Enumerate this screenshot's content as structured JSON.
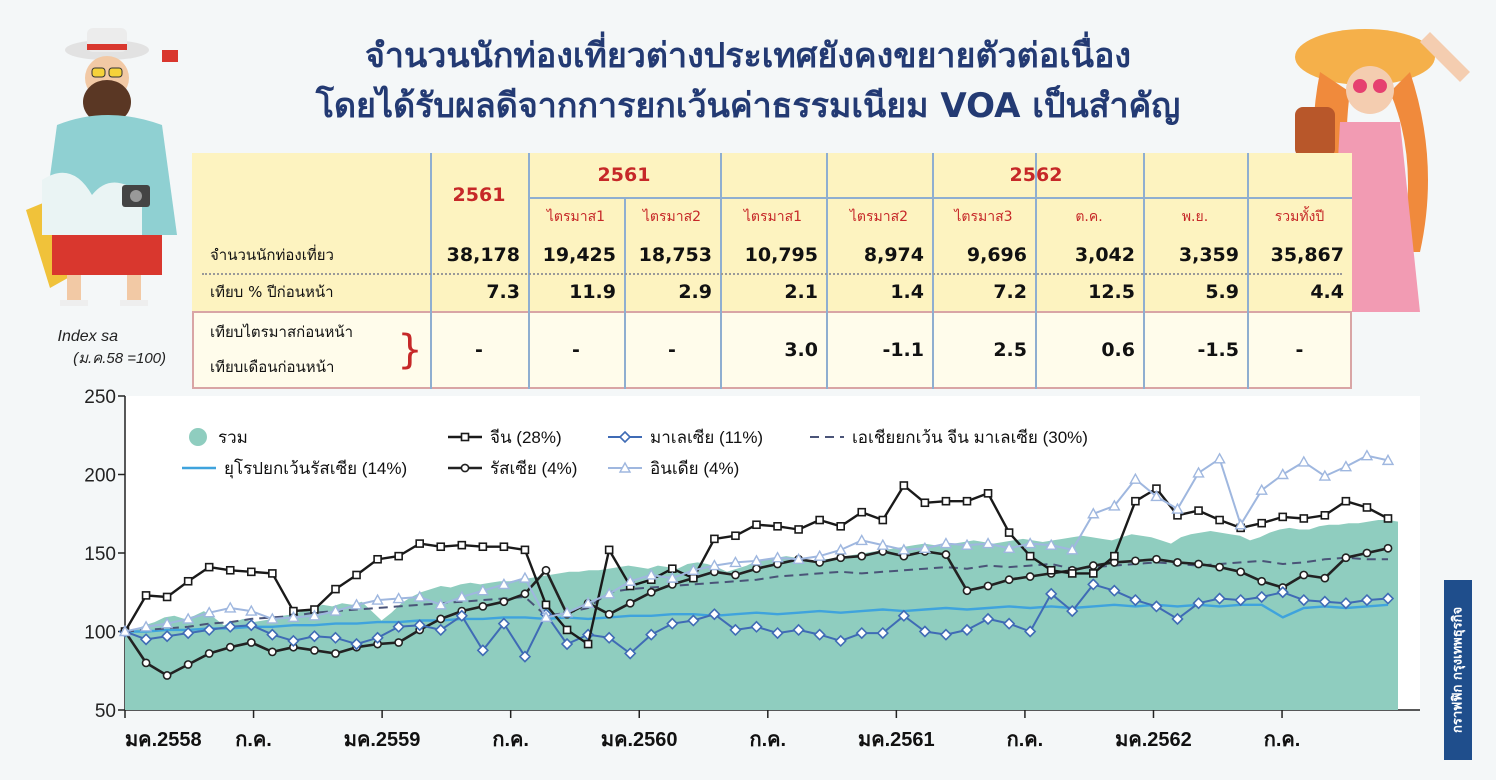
{
  "title_line1": "จำนวนนักท่องเที่ยวต่างประเทศยังคงขยายตัวต่อเนื่อง",
  "title_line2": "โดยได้รับผลดีจากการยกเว้นค่าธรรมเนียม VOA เป็นสำคัญ",
  "credit": "กราฟฟิก กรุงเทพธุรกิจ",
  "colors": {
    "title": "#233a73",
    "red": "#c62828",
    "area": "#8fcdbf",
    "china": "#1a1a1a",
    "malaysia": "#3f6bb5",
    "asia_ex": "#4a5478",
    "europe": "#3fa3dd",
    "russia": "#222222",
    "india": "#9fb7df"
  },
  "stats_table": {
    "group_headers": [
      "2561",
      "2561",
      "2562"
    ],
    "sub_headers": [
      "ไตรมาส1",
      "ไตรมาส2",
      "ไตรมาส1",
      "ไตรมาส2",
      "ไตรมาส3",
      "ต.ค.",
      "พ.ย.",
      "รวมทั้งปี"
    ],
    "rows": [
      {
        "label": "จำนวนนักท่องเที่ยว",
        "values": [
          "38,178",
          "19,425",
          "18,753",
          "10,795",
          "8,974",
          "9,696",
          "3,042",
          "3,359",
          "35,867"
        ]
      },
      {
        "label": "เทียบ % ปีก่อนหน้า",
        "values": [
          "7.3",
          "11.9",
          "2.9",
          "2.1",
          "1.4",
          "7.2",
          "12.5",
          "5.9",
          "4.4"
        ]
      },
      {
        "label": "เทียบไตรมาสก่อนหน้า",
        "label2": "เทียบเดือนก่อนหน้า",
        "brace": "}",
        "values": [
          "-",
          "-",
          "-",
          "3.0",
          "-1.1",
          "2.5",
          "0.6",
          "-1.5",
          "-"
        ]
      }
    ]
  },
  "chart_data": {
    "type": "line",
    "ylabel": "Index sa",
    "ylabel2": "(ม.ค.58 =100)",
    "ylim": [
      50,
      250
    ],
    "yticks": [
      "250",
      "200",
      "150",
      "100",
      "50"
    ],
    "xtick_labels": [
      "มค.2558",
      "ก.ค.",
      "มค.2559",
      "ก.ค.",
      "มค.2560",
      "ก.ค.",
      "มค.2561",
      "ก.ค.",
      "มค.2562",
      "ก.ค."
    ],
    "legend_placement": "top-left",
    "series": [
      {
        "name": "รวม",
        "style": "area",
        "values": [
          100,
          101,
          104,
          106,
          109,
          110,
          108,
          110,
          113,
          109,
          104,
          106,
          108,
          106,
          107,
          108,
          110,
          111,
          113,
          114,
          117,
          116,
          118,
          117,
          119,
          113,
          107,
          112,
          118,
          122,
          125,
          127,
          129,
          128,
          130,
          131,
          130,
          131,
          132,
          132,
          133,
          134,
          135,
          136,
          137,
          138,
          138,
          139,
          139,
          140,
          141,
          142,
          141,
          140,
          142,
          141,
          140,
          143,
          144,
          143,
          141,
          138,
          140,
          142,
          145,
          146,
          147,
          148,
          147,
          146,
          145,
          146,
          147,
          148,
          149,
          150,
          151,
          152,
          153,
          154,
          155,
          156,
          155,
          154,
          156,
          157,
          158,
          157,
          156,
          157,
          158,
          159,
          158,
          157,
          158,
          159,
          160,
          161,
          160,
          159,
          158,
          160,
          162,
          161,
          160,
          158,
          156,
          160,
          162,
          163,
          164,
          163,
          162,
          161,
          158,
          160,
          163,
          165,
          166,
          165,
          165,
          167,
          168,
          168,
          169,
          169,
          170,
          171,
          171,
          170
        ]
      },
      {
        "name": "จีน (28%)",
        "style": "square",
        "values": [
          100,
          123,
          122,
          132,
          141,
          139,
          138,
          137,
          113,
          114,
          127,
          136,
          146,
          148,
          156,
          154,
          155,
          154,
          154,
          152,
          117,
          101,
          92,
          152,
          129,
          133,
          140,
          134,
          159,
          161,
          168,
          167,
          165,
          171,
          167,
          176,
          171,
          193,
          182,
          183,
          183,
          188,
          163,
          148,
          139,
          137,
          137,
          148,
          183,
          191,
          174,
          177,
          171,
          166,
          169,
          173,
          172,
          174,
          183,
          179,
          172
        ]
      },
      {
        "name": "มาเลเซีย (11%)",
        "style": "diamond",
        "values": [
          100,
          95,
          97,
          99,
          101,
          103,
          104,
          98,
          94,
          97,
          96,
          92,
          96,
          103,
          104,
          101,
          110,
          88,
          105,
          84,
          111,
          92,
          98,
          96,
          86,
          98,
          105,
          107,
          111,
          101,
          103,
          99,
          101,
          98,
          94,
          99,
          99,
          110,
          100,
          98,
          101,
          108,
          105,
          100,
          124,
          113,
          130,
          126,
          120,
          116,
          108,
          118,
          121,
          120,
          122,
          125,
          120,
          119,
          118,
          120,
          121
        ]
      },
      {
        "name": "เอเชียยกเว้น จีน มาเลเซีย (30%)",
        "style": "dashed",
        "values": [
          100,
          101,
          102,
          103,
          105,
          106,
          108,
          109,
          110,
          112,
          113,
          114,
          115,
          116,
          117,
          118,
          119,
          120,
          121,
          122,
          110,
          112,
          115,
          125,
          127,
          128,
          129,
          130,
          131,
          132,
          133,
          135,
          136,
          137,
          138,
          137,
          138,
          139,
          140,
          141,
          140,
          142,
          141,
          142,
          143,
          140,
          141,
          142,
          143,
          144,
          143,
          142,
          143,
          144,
          145,
          143,
          144,
          146,
          147,
          146,
          146
        ]
      },
      {
        "name": "ยุโรปยกเว้นรัสเซีย (14%)",
        "style": "plain",
        "values": [
          100,
          100,
          101,
          101,
          102,
          102,
          103,
          103,
          104,
          104,
          105,
          105,
          106,
          106,
          107,
          107,
          108,
          108,
          109,
          109,
          108,
          109,
          108,
          109,
          110,
          110,
          111,
          111,
          110,
          111,
          112,
          111,
          112,
          113,
          112,
          113,
          114,
          113,
          114,
          115,
          114,
          115,
          116,
          115,
          116,
          115,
          116,
          117,
          116,
          117,
          116,
          117,
          116,
          117,
          117,
          109,
          115,
          116,
          115,
          116,
          117
        ]
      },
      {
        "name": "รัสเซีย (4%)",
        "style": "circle",
        "values": [
          100,
          80,
          72,
          79,
          86,
          90,
          93,
          87,
          90,
          88,
          86,
          90,
          92,
          93,
          101,
          108,
          113,
          116,
          119,
          124,
          139,
          111,
          118,
          111,
          118,
          125,
          130,
          134,
          138,
          136,
          140,
          143,
          146,
          144,
          147,
          148,
          151,
          148,
          151,
          149,
          126,
          129,
          133,
          135,
          137,
          139,
          142,
          144,
          145,
          146,
          144,
          143,
          141,
          138,
          132,
          128,
          136,
          134,
          147,
          150,
          153
        ]
      },
      {
        "name": "อินเดีย (4%)",
        "style": "triangle",
        "values": [
          100,
          103,
          105,
          108,
          112,
          115,
          113,
          108,
          109,
          110,
          113,
          117,
          120,
          121,
          122,
          117,
          122,
          126,
          130,
          134,
          109,
          112,
          118,
          124,
          132,
          136,
          134,
          139,
          142,
          144,
          145,
          147,
          146,
          148,
          152,
          158,
          155,
          152,
          153,
          156,
          155,
          156,
          153,
          156,
          155,
          152,
          175,
          180,
          197,
          186,
          178,
          201,
          210,
          168,
          190,
          200,
          208,
          199,
          205,
          212,
          209
        ]
      }
    ]
  }
}
